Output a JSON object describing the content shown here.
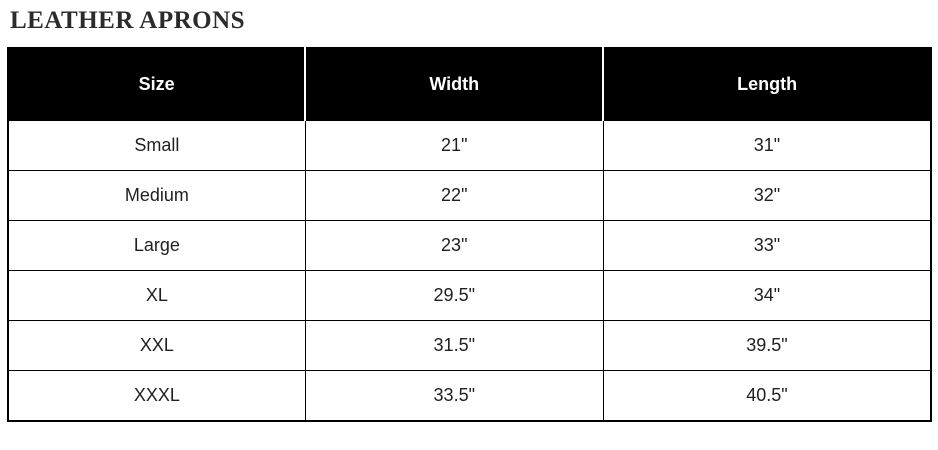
{
  "page": {
    "title": "LEATHER APRONS"
  },
  "colors": {
    "title_text": "#2b2b2b",
    "header_bg": "#000000",
    "header_text": "#ffffff",
    "body_text": "#1f1f1f",
    "border": "#000000"
  },
  "table": {
    "columns": [
      "Size",
      "Width",
      "Length"
    ],
    "rows": [
      [
        "Small",
        "21\"",
        "31\""
      ],
      [
        "Medium",
        "22\"",
        "32\""
      ],
      [
        "Large",
        "23\"",
        "33\""
      ],
      [
        "XL",
        "29.5\"",
        "34\""
      ],
      [
        "XXL",
        "31.5\"",
        "39.5\""
      ],
      [
        "XXXL",
        "33.5\"",
        "40.5\""
      ]
    ]
  }
}
